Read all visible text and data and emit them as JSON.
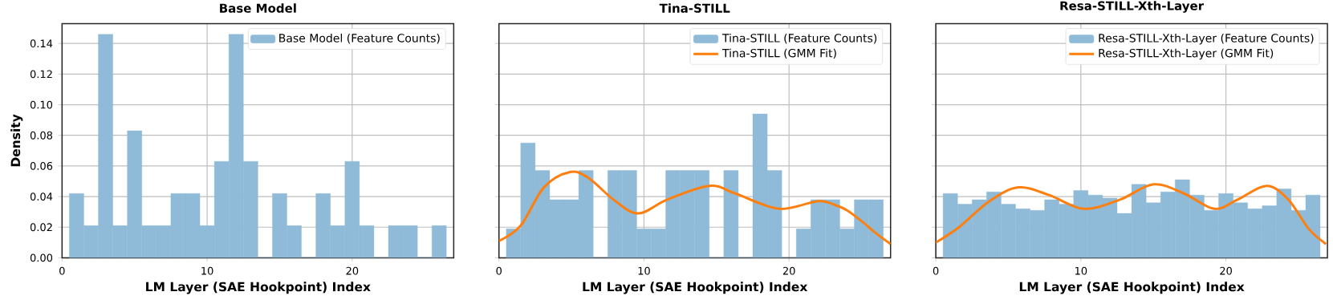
{
  "chart_data": [
    {
      "type": "histogram",
      "title": "Base Model",
      "xlabel": "LM Layer (SAE Hookpoint) Index",
      "ylabel": "Density",
      "grid": true,
      "legend": "top right",
      "xlim": [
        0,
        27
      ],
      "ylim": [
        0,
        0.153
      ],
      "xticks": [
        0,
        10,
        20
      ],
      "yticks": [
        {
          "value": 0,
          "label": "0.00"
        },
        {
          "value": 0.02,
          "label": "0.02"
        },
        {
          "value": 0.04,
          "label": "0.04"
        },
        {
          "value": 0.06,
          "label": "0.06"
        },
        {
          "value": 0.08,
          "label": "0.08"
        },
        {
          "value": 0.1,
          "label": "0.10"
        },
        {
          "value": 0.12,
          "label": "0.12"
        },
        {
          "value": 0.14,
          "label": "0.14"
        }
      ],
      "bins": [
        0.5,
        1.5,
        2.5,
        3.5,
        4.5,
        5.5,
        6.5,
        7.5,
        8.5,
        9.5,
        10.5,
        11.5,
        12.5,
        13.5,
        14.5,
        15.5,
        16.5,
        17.5,
        18.5,
        19.5,
        20.5,
        21.5,
        22.5,
        23.5,
        24.5,
        25.5,
        26.5
      ],
      "series": [
        {
          "type": "histogram",
          "name": "Base Model (Feature Counts)",
          "color": "#8fbad8",
          "values": [
            0.042,
            0.021,
            0.146,
            0.021,
            0.083,
            0.021,
            0.021,
            0.042,
            0.042,
            0.021,
            0.063,
            0.146,
            0.063,
            0,
            0.042,
            0.021,
            0,
            0.042,
            0.021,
            0.063,
            0.021,
            0,
            0.021,
            0.021,
            0,
            0.021
          ]
        }
      ]
    },
    {
      "type": "histogram",
      "title": "Tina-STILL",
      "xlabel": "LM Layer (SAE Hookpoint) Index",
      "grid": true,
      "legend": "top right",
      "tick_labels": "x",
      "xlim": [
        0,
        27
      ],
      "ylim": [
        0,
        0.153
      ],
      "xticks": [
        0,
        10,
        20
      ],
      "yticks": [
        0,
        0.02,
        0.04,
        0.06,
        0.08,
        0.1,
        0.12,
        0.14
      ],
      "bins": [
        0.5,
        1.5,
        2.5,
        3.5,
        4.5,
        5.5,
        6.5,
        7.5,
        8.5,
        9.5,
        10.5,
        11.5,
        12.5,
        13.5,
        14.5,
        15.5,
        16.5,
        17.5,
        18.5,
        19.5,
        20.5,
        21.5,
        22.5,
        23.5,
        24.5,
        25.5,
        26.5
      ],
      "series": [
        {
          "type": "histogram",
          "name": "Tina-STILL (Feature Counts)",
          "color": "#8fbad8",
          "values": [
            0.019,
            0.075,
            0.057,
            0.038,
            0.038,
            0.057,
            0,
            0.057,
            0.057,
            0.019,
            0.019,
            0.057,
            0.057,
            0.057,
            0,
            0.057,
            0,
            0.094,
            0.057,
            0,
            0.019,
            0.038,
            0.038,
            0.019,
            0.038,
            0.038
          ]
        },
        {
          "type": "line",
          "name": "Tina-STILL (GMM Fit)",
          "color": "#ff7f0e",
          "x": [
            0,
            1.5,
            3.1,
            4.9,
            6.2,
            7.9,
            9.6,
            11.6,
            14.5,
            16.3,
            19.3,
            22.0,
            23.3,
            24,
            25,
            26,
            27
          ],
          "values": [
            0.011,
            0.021,
            0.046,
            0.056,
            0.052,
            0.038,
            0.029,
            0.038,
            0.047,
            0.042,
            0.032,
            0.037,
            0.034,
            0.031,
            0.024,
            0.016,
            0.009
          ]
        }
      ]
    },
    {
      "type": "histogram",
      "title": "Resa-STILL-Xth-Layer",
      "xlabel": "LM Layer (SAE Hookpoint) Index",
      "grid": true,
      "legend": "top right",
      "tick_labels": "x",
      "xlim": [
        0,
        27
      ],
      "ylim": [
        0,
        0.153
      ],
      "xticks": [
        0,
        10,
        20
      ],
      "yticks": [
        0,
        0.02,
        0.04,
        0.06,
        0.08,
        0.1,
        0.12,
        0.14
      ],
      "bins": [
        0.5,
        1.5,
        2.5,
        3.5,
        4.5,
        5.5,
        6.5,
        7.5,
        8.5,
        9.5,
        10.5,
        11.5,
        12.5,
        13.5,
        14.5,
        15.5,
        16.5,
        17.5,
        18.5,
        19.5,
        20.5,
        21.5,
        22.5,
        23.5,
        24.5,
        25.5,
        26.5
      ],
      "series": [
        {
          "type": "histogram",
          "name": "Resa-STILL-Xth-Layer (Feature Counts)",
          "color": "#8fbad8",
          "values": [
            0.042,
            0.035,
            0.038,
            0.043,
            0.035,
            0.032,
            0.031,
            0.038,
            0.035,
            0.044,
            0.041,
            0.039,
            0.029,
            0.048,
            0.036,
            0.043,
            0.051,
            0.041,
            0.031,
            0.042,
            0.036,
            0.032,
            0.034,
            0.045,
            0.031,
            0.041
          ]
        },
        {
          "type": "line",
          "name": "Resa-STILL-Xth-Layer (GMM Fit)",
          "color": "#ff7f0e",
          "x": [
            0,
            1.6,
            3.7,
            5.7,
            7.8,
            10.2,
            12.7,
            15.0,
            17.1,
            19.2,
            20.8,
            22.8,
            24.3,
            25.7,
            26.9
          ],
          "values": [
            0.01,
            0.02,
            0.037,
            0.046,
            0.041,
            0.032,
            0.038,
            0.048,
            0.042,
            0.032,
            0.038,
            0.047,
            0.038,
            0.019,
            0.009
          ]
        }
      ]
    }
  ]
}
